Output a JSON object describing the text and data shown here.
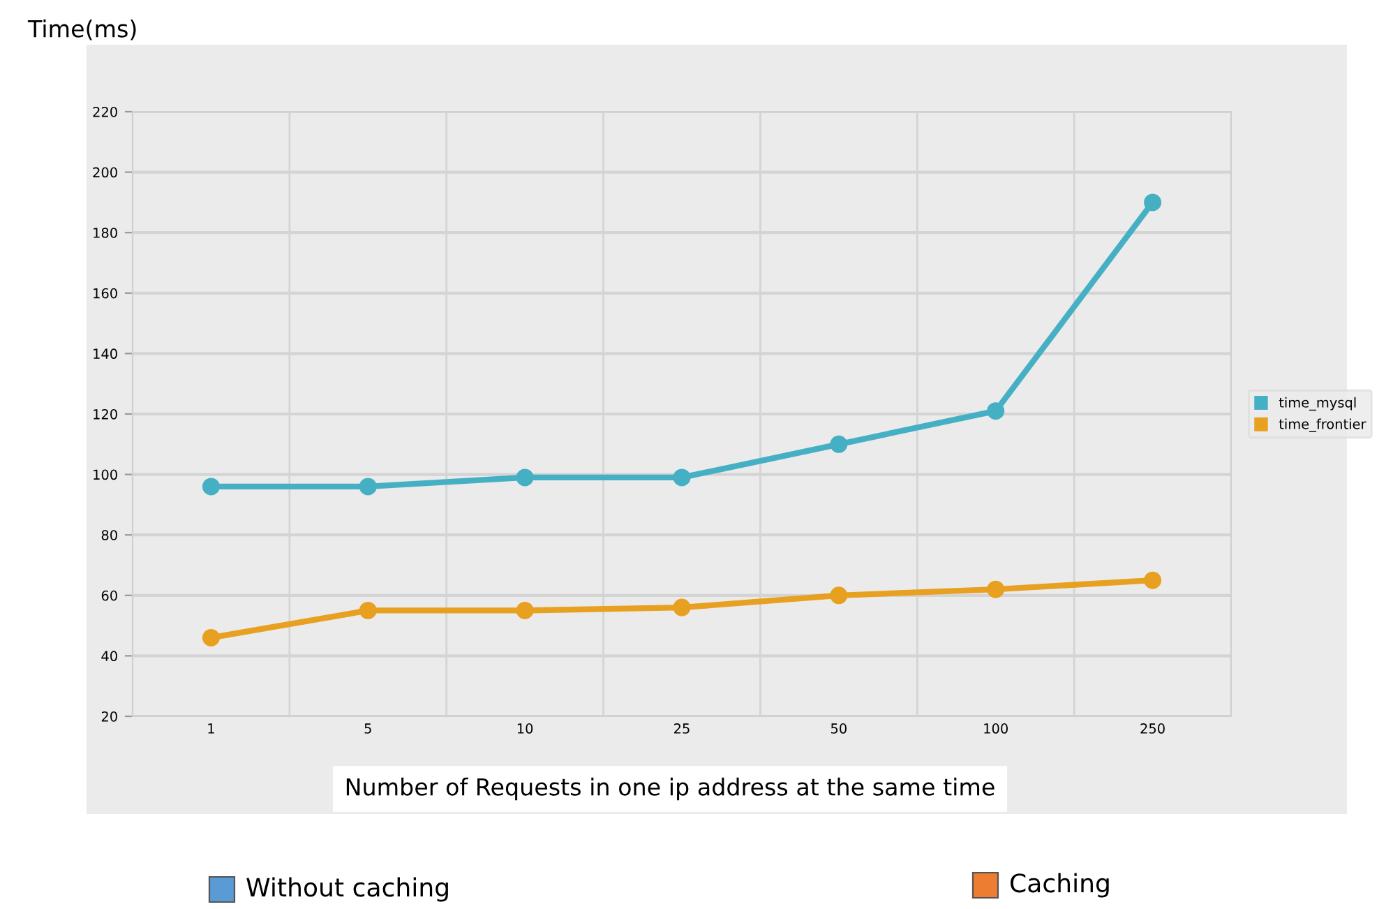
{
  "chart_data": {
    "type": "line",
    "ylabel": "Time(ms)",
    "xlabel": "Number of Requests in one ip address at the same time",
    "categories": [
      "1",
      "5",
      "10",
      "25",
      "50",
      "100",
      "250"
    ],
    "series": [
      {
        "name": "time_mysql",
        "color": "#45b0c4",
        "values": [
          96,
          96,
          99,
          99,
          110,
          121,
          190
        ]
      },
      {
        "name": "time_frontier",
        "color": "#e8a020",
        "values": [
          46,
          55,
          55,
          56,
          60,
          62,
          65
        ]
      }
    ],
    "ylim": [
      20,
      220
    ],
    "yticks": [
      20,
      40,
      60,
      80,
      100,
      120,
      140,
      160,
      180,
      200,
      220
    ],
    "grid": true,
    "legend": "right",
    "marker": "circle",
    "line_style": "solid",
    "annotations": [
      "Without caching",
      "Caching"
    ]
  }
}
